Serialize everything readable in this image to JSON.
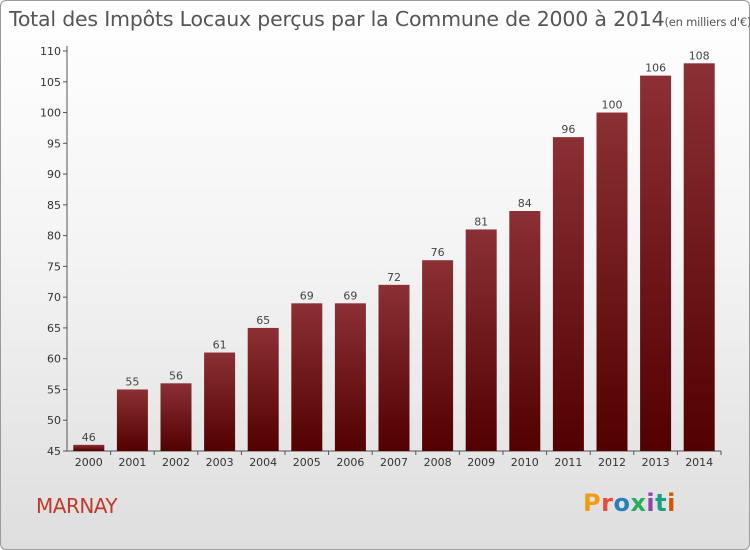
{
  "title": "Total des Impôts Locaux perçus par la Commune de 2000 à 2014",
  "title_unit": "(en milliers d'€)",
  "commune": "MARNAY",
  "logo": "Proxiti",
  "colors": {
    "bar_top": "#8b3035",
    "bar_bottom": "#520000",
    "commune": "#c0392b",
    "logo": [
      "#f39c12",
      "#e74c3c",
      "#2980b9",
      "#27ae60",
      "#8e44ad",
      "#16a085",
      "#d35400"
    ]
  },
  "chart_data": {
    "type": "bar",
    "title": "Total des Impôts Locaux perçus par la Commune de 2000 à 2014",
    "unit": "(en milliers d'€)",
    "categories": [
      "2000",
      "2001",
      "2002",
      "2003",
      "2004",
      "2005",
      "2006",
      "2007",
      "2008",
      "2009",
      "2010",
      "2011",
      "2012",
      "2013",
      "2014"
    ],
    "values": [
      46,
      55,
      56,
      61,
      65,
      69,
      69,
      72,
      76,
      81,
      84,
      96,
      100,
      106,
      108
    ],
    "yticks": [
      45,
      50,
      55,
      60,
      65,
      70,
      75,
      80,
      85,
      90,
      95,
      100,
      105,
      110
    ],
    "ylim": [
      45,
      110
    ],
    "grid": false,
    "legend": "none"
  }
}
